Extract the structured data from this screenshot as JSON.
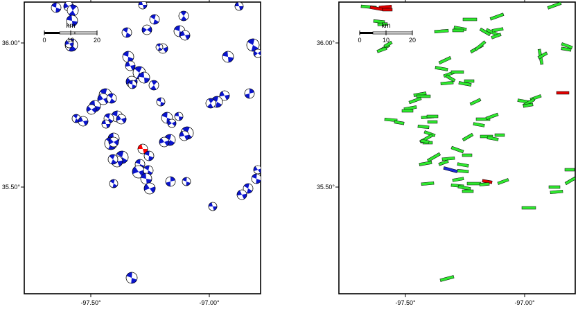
{
  "colors": {
    "frame": "#000000",
    "mech_fill": "#0a14cc",
    "mech_highlight": "#ff0000",
    "bar_fill": "#2ee82e",
    "bar_red": "#e00000",
    "bar_blue": "#1a2bd6"
  },
  "panels": [
    {
      "id": "focal-mechanisms",
      "x_ticks": [
        "-97.50°",
        "-97.00°"
      ],
      "y_ticks": [
        "36.00°",
        "35.50°"
      ],
      "scalebar": {
        "label": "km",
        "ticks": [
          "0",
          "10",
          "20"
        ]
      }
    },
    {
      "id": "stress-orientations",
      "x_ticks": [
        "-97.50°",
        "-97.00°"
      ],
      "y_ticks": [
        "36.00°",
        "35.50°"
      ],
      "scalebar": {
        "label": "km",
        "ticks": [
          "0",
          "10",
          "20"
        ]
      }
    }
  ]
}
